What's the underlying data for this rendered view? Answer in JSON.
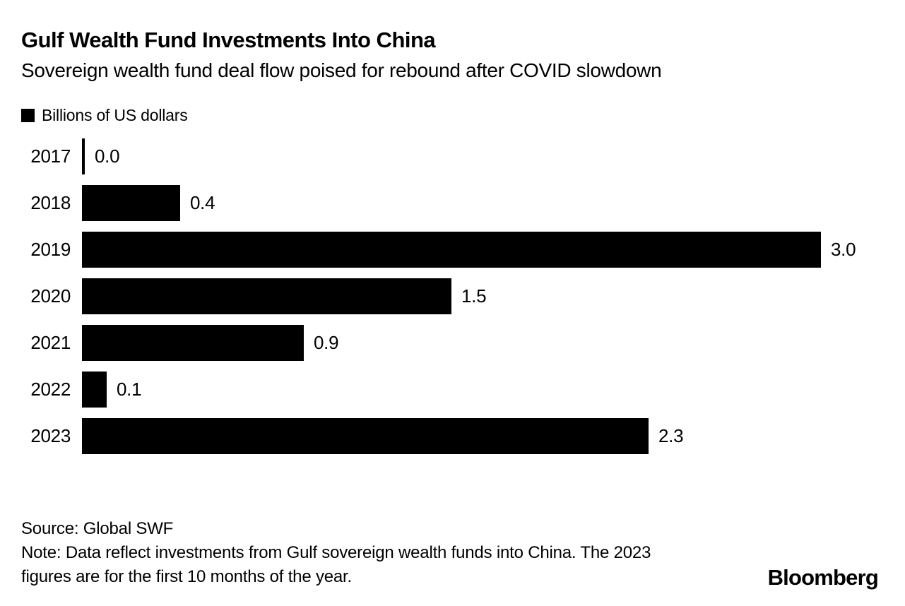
{
  "header": {
    "title": "Gulf Wealth Fund Investments Into China",
    "subtitle": "Sovereign wealth fund deal flow poised for rebound after COVID slowdown"
  },
  "legend": {
    "swatch_color": "#000000",
    "label": "Billions of US dollars"
  },
  "chart_data": {
    "type": "bar",
    "orientation": "horizontal",
    "title": "Gulf Wealth Fund Investments Into China",
    "subtitle": "Sovereign wealth fund deal flow poised for rebound after COVID slowdown",
    "legend_label": "Billions of US dollars",
    "legend_position": "top-left",
    "categories": [
      "2017",
      "2018",
      "2019",
      "2020",
      "2021",
      "2022",
      "2023"
    ],
    "values": [
      0.0,
      0.4,
      3.0,
      1.5,
      0.9,
      0.1,
      2.3
    ],
    "value_labels": [
      "0.0",
      "0.4",
      "3.0",
      "1.5",
      "0.9",
      "0.1",
      "2.3"
    ],
    "xlim": [
      0,
      3.0
    ],
    "grid": "off",
    "bar_color": "#000000",
    "zero_marker": "thin-vertical-line"
  },
  "footer": {
    "source": "Source: Global SWF",
    "note": "Note: Data reflect investments from Gulf sovereign wealth funds into China. The 2023 figures are for the first 10 months of the year.",
    "brand": "Bloomberg"
  }
}
